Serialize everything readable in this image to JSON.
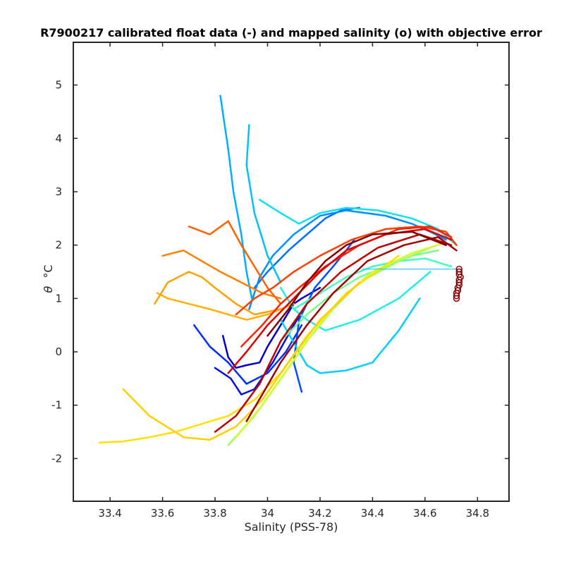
{
  "chart_data": {
    "type": "line",
    "title": "R7900217 calibrated float data (-) and mapped salinity (o) with objective error",
    "xlabel": "Salinity (PSS-78)",
    "ylabel_symbol": "θ",
    "ylabel_unit": "°C",
    "xlim": [
      33.26,
      34.92
    ],
    "ylim": [
      -2.8,
      5.8
    ],
    "x_ticks": [
      "33.4",
      "33.6",
      "33.8",
      "34",
      "34.2",
      "34.4",
      "34.6",
      "34.8"
    ],
    "x_tick_values": [
      33.4,
      33.6,
      33.8,
      34.0,
      34.2,
      34.4,
      34.6,
      34.8
    ],
    "y_ticks": [
      "-2",
      "-1",
      "0",
      "1",
      "2",
      "3",
      "4",
      "5"
    ],
    "y_tick_values": [
      -2,
      -1,
      0,
      1,
      2,
      3,
      4,
      5
    ],
    "colormap": "jet",
    "colors": {
      "axes": "#262626",
      "mapped_line": "#00bfff",
      "mapped_marker": "#8b0000"
    },
    "series": [
      {
        "color": "#0000c8",
        "x": [
          33.83,
          33.85,
          33.88,
          33.92,
          33.97,
          34.0,
          34.05,
          34.1,
          34.13,
          34.2
        ],
        "y": [
          0.3,
          -0.1,
          -0.3,
          -0.25,
          -0.2,
          0.1,
          0.5,
          0.9,
          1.0,
          1.2
        ]
      },
      {
        "color": "#0010e0",
        "x": [
          33.8,
          33.86,
          33.9,
          33.95,
          34.02,
          34.1,
          34.15
        ],
        "y": [
          -0.3,
          -0.5,
          -0.8,
          -0.7,
          -0.2,
          0.5,
          0.9
        ]
      },
      {
        "color": "#0030ff",
        "x": [
          33.72,
          33.78,
          33.85,
          33.92,
          34.0,
          34.07,
          34.13
        ],
        "y": [
          0.5,
          0.1,
          -0.2,
          -0.6,
          -0.4,
          0.0,
          0.5
        ]
      },
      {
        "color": "#0050ff",
        "x": [
          34.13,
          34.1,
          34.12,
          34.18,
          34.25,
          34.3,
          34.33
        ],
        "y": [
          -0.75,
          -0.2,
          0.6,
          1.2,
          1.6,
          1.9,
          2.1
        ]
      },
      {
        "color": "#0070ff",
        "x": [
          33.95,
          34.0,
          34.08,
          34.15,
          34.22,
          34.28,
          34.35
        ],
        "y": [
          1.2,
          1.5,
          1.9,
          2.2,
          2.5,
          2.65,
          2.7
        ]
      },
      {
        "color": "#0090ff",
        "x": [
          33.93,
          33.97,
          34.02,
          34.1,
          34.2,
          34.3,
          34.45,
          34.55,
          34.62,
          34.68
        ],
        "y": [
          0.8,
          1.4,
          1.8,
          2.2,
          2.55,
          2.65,
          2.55,
          2.4,
          2.25,
          2.1
        ]
      },
      {
        "color": "#00b0ff",
        "x": [
          33.82,
          33.85,
          33.87,
          33.9,
          33.92,
          33.94
        ],
        "y": [
          4.8,
          3.8,
          3.0,
          2.2,
          1.5,
          1.0
        ]
      },
      {
        "color": "#00c0ff",
        "x": [
          33.93,
          33.92,
          33.95,
          34.0,
          34.05
        ],
        "y": [
          4.25,
          3.5,
          2.6,
          1.8,
          1.3
        ]
      },
      {
        "color": "#00d0ff",
        "x": [
          34.05,
          34.12,
          34.15,
          34.2,
          34.3,
          34.4,
          34.5,
          34.58
        ],
        "y": [
          0.6,
          0.0,
          -0.25,
          -0.4,
          -0.35,
          -0.2,
          0.4,
          1.0
        ]
      },
      {
        "color": "#10e0f0",
        "x": [
          33.97,
          34.05,
          34.12,
          34.2,
          34.3,
          34.42,
          34.55,
          34.65,
          34.72
        ],
        "y": [
          2.85,
          2.6,
          2.4,
          2.6,
          2.7,
          2.65,
          2.5,
          2.3,
          2.0
        ]
      },
      {
        "color": "#20f0e0",
        "x": [
          34.05,
          34.1,
          34.15,
          34.22,
          34.35,
          34.5,
          34.62
        ],
        "y": [
          1.2,
          0.8,
          0.6,
          0.4,
          0.6,
          1.0,
          1.5
        ]
      },
      {
        "color": "#40ffc0",
        "x": [
          34.1,
          34.2,
          34.3,
          34.4,
          34.5,
          34.6,
          34.7
        ],
        "y": [
          0.8,
          1.1,
          1.4,
          1.6,
          1.7,
          1.75,
          1.6
        ]
      },
      {
        "color": "#70ff90",
        "x": [
          34.05,
          34.15,
          34.25,
          34.35,
          34.45,
          34.55,
          34.65
        ],
        "y": [
          0.2,
          0.7,
          1.1,
          1.4,
          1.6,
          1.8,
          1.9
        ]
      },
      {
        "color": "#a0ff60",
        "x": [
          33.85,
          33.95,
          34.05,
          34.15,
          34.25,
          34.35,
          34.5,
          34.62
        ],
        "y": [
          -1.75,
          -1.2,
          -0.5,
          0.2,
          0.8,
          1.3,
          1.7,
          1.95
        ]
      },
      {
        "color": "#d0ff30",
        "x": [
          33.88,
          33.98,
          34.08,
          34.18,
          34.28,
          34.4,
          34.55,
          34.68
        ],
        "y": [
          -1.6,
          -1.0,
          -0.3,
          0.4,
          1.0,
          1.5,
          1.85,
          2.05
        ]
      },
      {
        "color": "#ffe000",
        "x": [
          33.36,
          33.45,
          33.55,
          33.65,
          33.75,
          33.85,
          33.95,
          34.05,
          34.15,
          34.3,
          34.5
        ],
        "y": [
          -1.7,
          -1.68,
          -1.6,
          -1.5,
          -1.35,
          -1.2,
          -0.9,
          -0.4,
          0.3,
          1.1,
          1.8
        ]
      },
      {
        "color": "#ffd000",
        "x": [
          33.45,
          33.55,
          33.68,
          33.78,
          33.88,
          33.98,
          34.08,
          34.2,
          34.35
        ],
        "y": [
          -0.7,
          -1.2,
          -1.6,
          -1.65,
          -1.4,
          -0.9,
          -0.2,
          0.6,
          1.3
        ]
      },
      {
        "color": "#ffb000",
        "x": [
          33.58,
          33.62,
          33.7,
          33.78,
          33.85,
          33.92,
          34.0,
          34.1
        ],
        "y": [
          1.1,
          1.0,
          0.9,
          0.8,
          0.7,
          0.6,
          0.7,
          0.9
        ]
      },
      {
        "color": "#ffa000",
        "x": [
          33.57,
          33.62,
          33.7,
          33.75,
          33.8,
          33.88,
          33.95,
          34.05
        ],
        "y": [
          0.9,
          1.3,
          1.5,
          1.4,
          1.2,
          0.9,
          0.7,
          0.8
        ]
      },
      {
        "color": "#ff8000",
        "x": [
          33.6,
          33.68,
          33.75,
          33.82,
          33.9,
          33.98,
          34.05
        ],
        "y": [
          1.8,
          1.9,
          1.7,
          1.5,
          1.3,
          1.1,
          1.0
        ]
      },
      {
        "color": "#ff6000",
        "x": [
          33.7,
          33.78,
          33.85,
          33.9,
          33.95,
          34.0,
          34.05
        ],
        "y": [
          2.35,
          2.2,
          2.45,
          2.0,
          1.6,
          1.2,
          0.9
        ]
      },
      {
        "color": "#ff4000",
        "x": [
          33.88,
          33.95,
          34.02,
          34.1,
          34.2,
          34.32,
          34.45,
          34.58,
          34.68,
          34.72
        ],
        "y": [
          0.7,
          1.0,
          1.2,
          1.5,
          1.8,
          2.1,
          2.3,
          2.35,
          2.25,
          2.0
        ]
      },
      {
        "color": "#ff2000",
        "x": [
          33.9,
          33.98,
          34.05,
          34.12,
          34.22,
          34.35,
          34.5,
          34.62,
          34.7
        ],
        "y": [
          0.1,
          0.5,
          0.9,
          1.2,
          1.6,
          2.0,
          2.3,
          2.35,
          2.15
        ]
      },
      {
        "color": "#e00000",
        "x": [
          33.85,
          33.92,
          34.0,
          34.1,
          34.2,
          34.3,
          34.45,
          34.6,
          34.7
        ],
        "y": [
          -0.4,
          0.0,
          0.5,
          1.0,
          1.5,
          1.9,
          2.2,
          2.3,
          2.1
        ]
      },
      {
        "color": "#c00000",
        "x": [
          33.8,
          33.88,
          33.97,
          34.05,
          34.15,
          34.28,
          34.42,
          34.58,
          34.7
        ],
        "y": [
          -1.5,
          -1.2,
          -0.6,
          0.2,
          0.9,
          1.5,
          1.95,
          2.2,
          2.0
        ]
      },
      {
        "color": "#a00000",
        "x": [
          33.92,
          33.98,
          34.05,
          34.15,
          34.25,
          34.38,
          34.52,
          34.65,
          34.72
        ],
        "y": [
          -1.3,
          -0.8,
          -0.2,
          0.5,
          1.1,
          1.7,
          2.0,
          2.15,
          1.9
        ]
      },
      {
        "color": "#800000",
        "x": [
          34.0,
          34.08,
          34.15,
          34.22,
          34.3,
          34.4,
          34.55,
          34.68
        ],
        "y": [
          0.3,
          0.8,
          1.3,
          1.7,
          2.0,
          2.2,
          2.25,
          2.0
        ]
      }
    ],
    "mapped_line": {
      "x": [
        34.36,
        34.74
      ],
      "y": [
        1.55,
        1.55
      ]
    },
    "mapped_points": {
      "x": [
        34.73,
        34.73,
        34.73,
        34.735,
        34.73,
        34.73,
        34.73,
        34.725,
        34.725,
        34.72,
        34.72,
        34.72
      ],
      "y": [
        1.55,
        1.5,
        1.45,
        1.4,
        1.35,
        1.3,
        1.25,
        1.2,
        1.15,
        1.1,
        1.05,
        1.0
      ]
    }
  }
}
